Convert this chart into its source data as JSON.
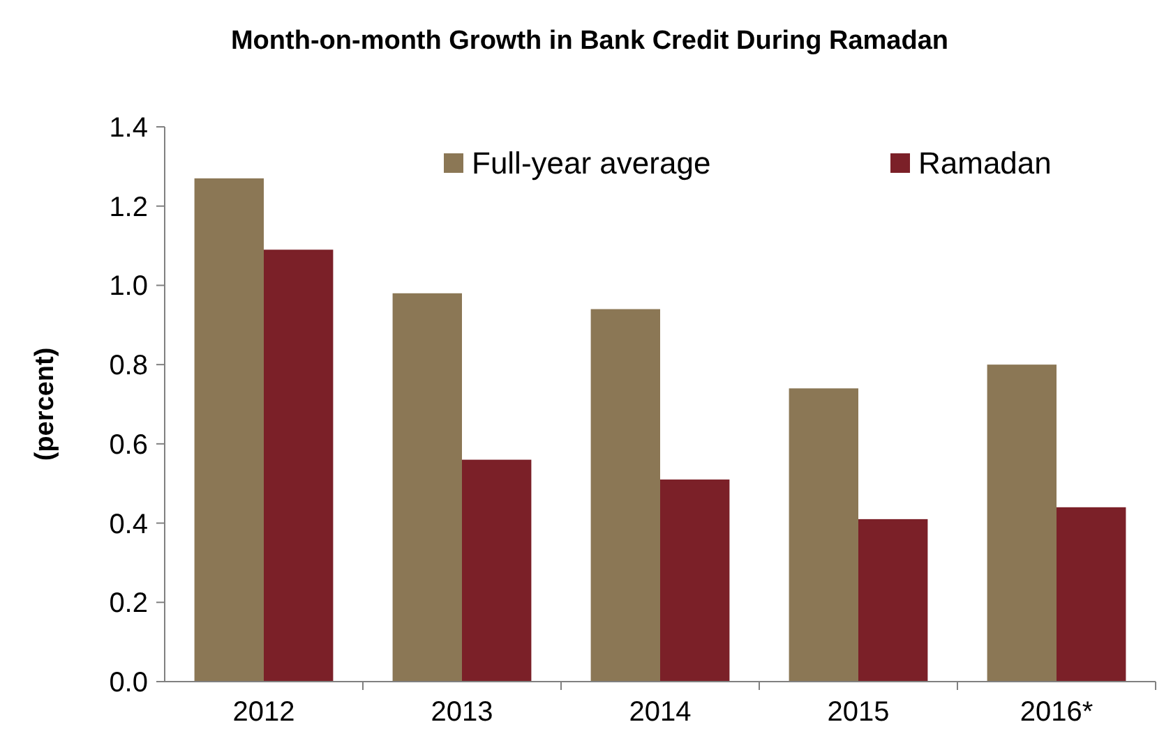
{
  "chart_data": {
    "type": "bar",
    "title": "Month-on-month Growth in Bank Credit During Ramadan",
    "ylabel": "(percent)",
    "categories": [
      "2012",
      "2013",
      "2014",
      "2015",
      "2016*"
    ],
    "series": [
      {
        "name": "Full-year average",
        "color": "#8b7755",
        "values": [
          1.27,
          0.98,
          0.94,
          0.74,
          0.8
        ]
      },
      {
        "name": "Ramadan",
        "color": "#7b2028",
        "values": [
          1.09,
          0.56,
          0.51,
          0.41,
          0.44
        ]
      }
    ],
    "ylim": [
      0,
      1.4
    ],
    "yticks": [
      {
        "value": 0,
        "label": "0.0"
      },
      {
        "value": 0.2,
        "label": "0.2"
      },
      {
        "value": 0.4,
        "label": "0.4"
      },
      {
        "value": 0.6,
        "label": "0.6"
      },
      {
        "value": 0.8,
        "label": "0.8"
      },
      {
        "value": 1,
        "label": "1.0"
      },
      {
        "value": 1.2,
        "label": "1.2"
      },
      {
        "value": 1.4,
        "label": "1.4"
      }
    ],
    "grid": false,
    "legend": "top right"
  }
}
